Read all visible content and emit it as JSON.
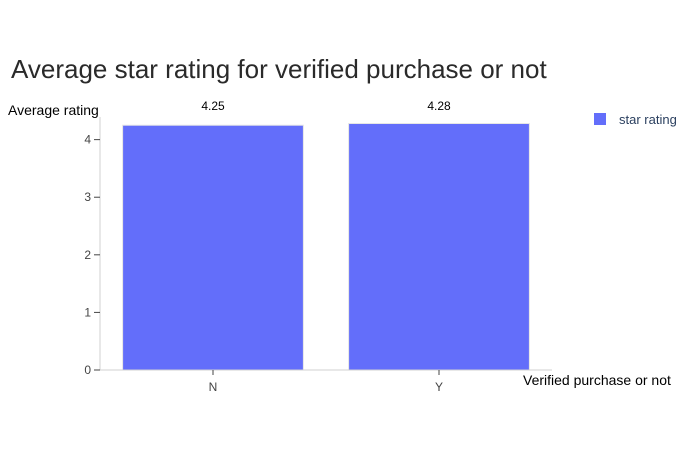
{
  "chart_data": {
    "type": "bar",
    "title": "Average star rating for verified purchase or not",
    "xlabel": "Verified purchase or not",
    "ylabel": "Average rating",
    "categories": [
      "N",
      "Y"
    ],
    "series": [
      {
        "name": "star rating",
        "values": [
          4.25,
          4.28
        ],
        "data_labels": [
          "4.25",
          "4.28"
        ],
        "color": "#636efa"
      }
    ],
    "yticks": [
      "0",
      "1",
      "2",
      "3",
      "4"
    ],
    "ylim": [
      0,
      4.28
    ],
    "grid": false,
    "legend_position": "top-right"
  }
}
